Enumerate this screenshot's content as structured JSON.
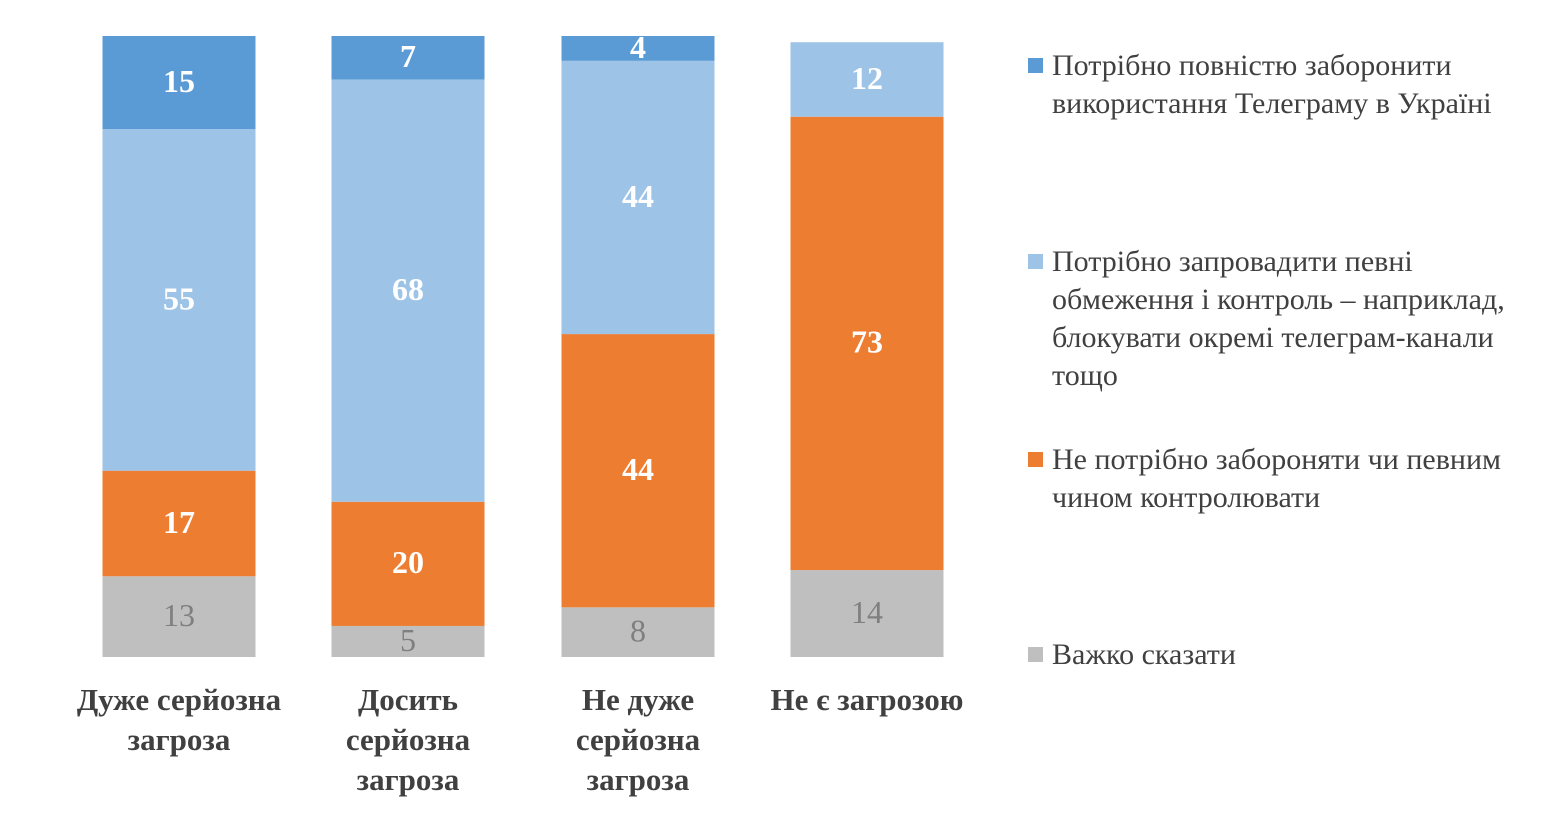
{
  "chart_data": {
    "type": "stacked_bar",
    "categories": [
      "Дуже серйозна загроза",
      "Досить серйозна загроза",
      "Не дуже серйозна загроза",
      "Не є загрозою"
    ],
    "series": [
      {
        "name": "Потрібно повністю заборонити використання Телеграму в Україні",
        "color": "#5b9bd5",
        "label_color": "#ffffff",
        "values": [
          15,
          7,
          4,
          null
        ]
      },
      {
        "name": "Потрібно запровадити певні обмеження і контроль – наприклад, блокувати окремі телеграм-канали тощо",
        "color": "#9dc3e6",
        "label_color": "#ffffff",
        "values": [
          55,
          68,
          44,
          12
        ]
      },
      {
        "name": "Не потрібно забороняти чи певним чином контролювати",
        "color": "#ed7d31",
        "label_color": "#ffffff",
        "values": [
          17,
          20,
          44,
          73
        ]
      },
      {
        "name": "Важко сказати",
        "color": "#bfbfbf",
        "label_color": "#7f7f7f",
        "values": [
          13,
          5,
          8,
          14
        ]
      }
    ],
    "ylim": [
      0,
      100
    ]
  }
}
